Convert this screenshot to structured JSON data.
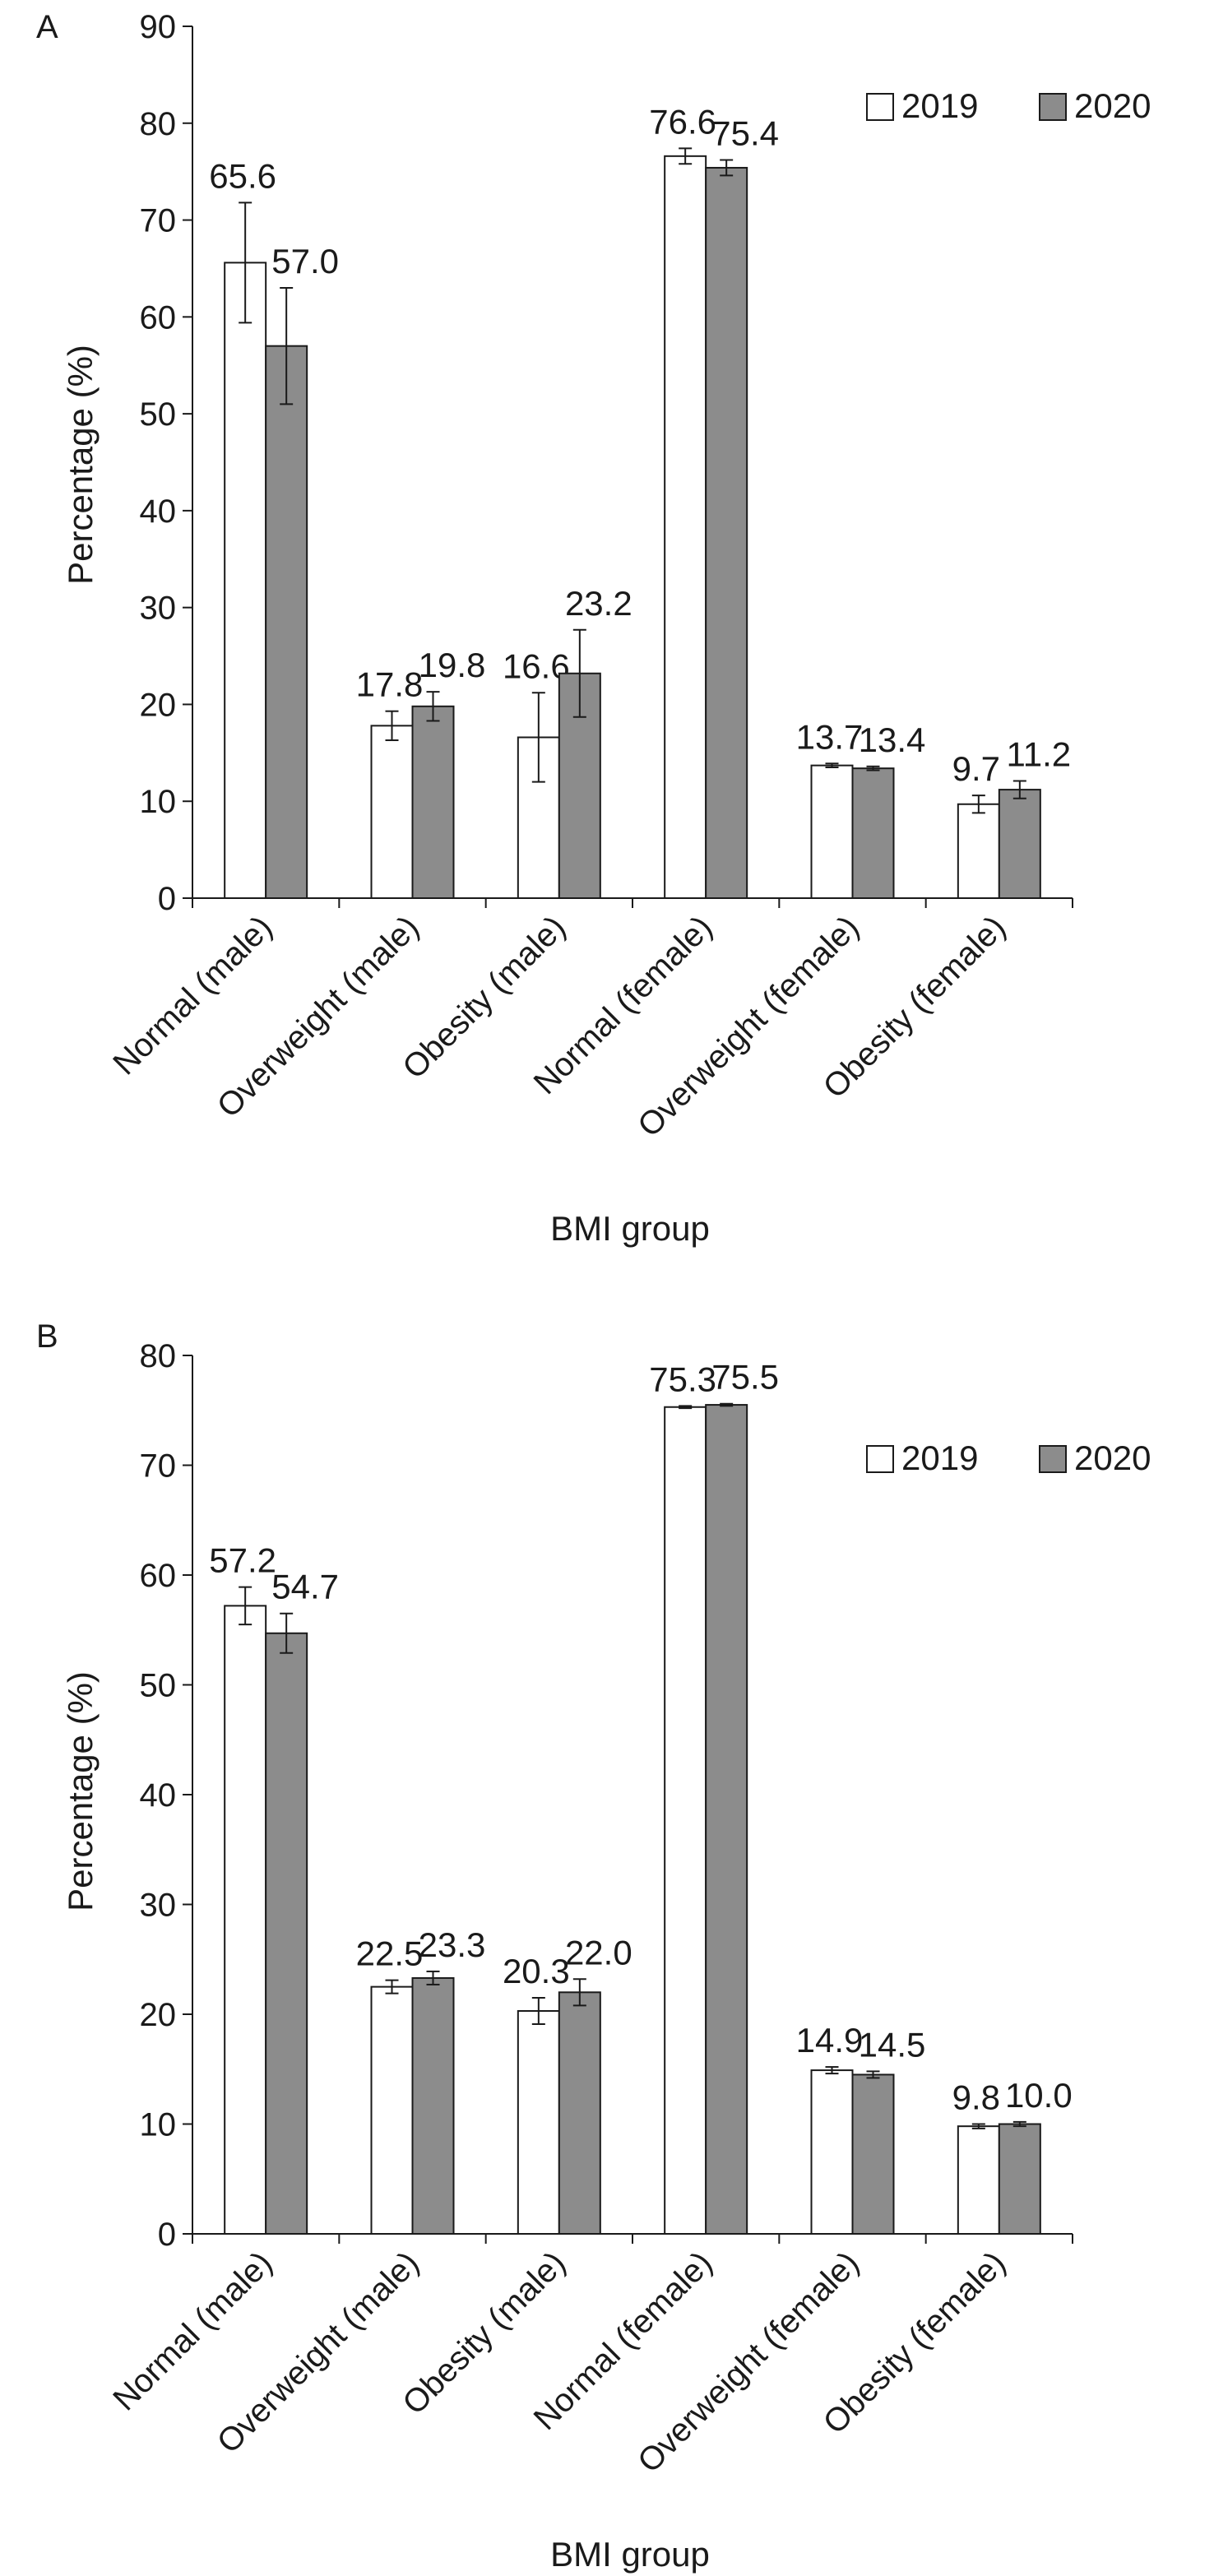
{
  "colors": {
    "s2019": "#ffffff",
    "s2020": "#8c8c8c",
    "axis": "#1a1a1a",
    "text": "#1a1a1a"
  },
  "chart_data": [
    {
      "panel": "A",
      "type": "bar",
      "xlabel": "BMI group",
      "ylabel": "Percentage (%)",
      "ylim": [
        0,
        90
      ],
      "yticks": [
        "0",
        "10",
        "20",
        "30",
        "40",
        "50",
        "60",
        "70",
        "80",
        "90"
      ],
      "categories": [
        "Normal (male)",
        "Overweight (male)",
        "Obesity (male)",
        "Normal (female)",
        "Overweight (female)",
        "Obesity (female)"
      ],
      "legend_position": "top-right",
      "series": [
        {
          "name": "2019",
          "values": [
            65.6,
            17.8,
            16.6,
            76.6,
            13.7,
            9.7
          ],
          "labels": [
            "65.6",
            "17.8",
            "16.6",
            "76.6",
            "13.7",
            "9.7"
          ],
          "errors": [
            6.2,
            1.5,
            4.6,
            0.8,
            0.2,
            0.9
          ]
        },
        {
          "name": "2020",
          "values": [
            57.0,
            19.8,
            23.2,
            75.4,
            13.4,
            11.2
          ],
          "labels": [
            "57.0",
            "19.8",
            "23.2",
            "75.4",
            "13.4",
            "11.2"
          ],
          "errors": [
            6.0,
            1.5,
            4.5,
            0.8,
            0.2,
            0.9
          ]
        }
      ]
    },
    {
      "panel": "B",
      "type": "bar",
      "xlabel": "BMI group",
      "ylabel": "Percentage (%)",
      "ylim": [
        0,
        80
      ],
      "yticks": [
        "0",
        "10",
        "20",
        "30",
        "40",
        "50",
        "60",
        "70",
        "80"
      ],
      "categories": [
        "Normal (male)",
        "Overweight (male)",
        "Obesity (male)",
        "Normal (female)",
        "Overweight (female)",
        "Obesity (female)"
      ],
      "legend_position": "top-right",
      "series": [
        {
          "name": "2019",
          "values": [
            57.2,
            22.5,
            20.3,
            75.3,
            14.9,
            9.8
          ],
          "labels": [
            "57.2",
            "22.5",
            "20.3",
            "75.3",
            "14.9",
            "9.8"
          ],
          "errors": [
            1.7,
            0.6,
            1.2,
            0.1,
            0.3,
            0.2
          ]
        },
        {
          "name": "2020",
          "values": [
            54.7,
            23.3,
            22.0,
            75.5,
            14.5,
            10.0
          ],
          "labels": [
            "54.7",
            "23.3",
            "22.0",
            "75.5",
            "14.5",
            "10.0"
          ],
          "errors": [
            1.8,
            0.6,
            1.2,
            0.1,
            0.3,
            0.2
          ]
        }
      ]
    }
  ]
}
